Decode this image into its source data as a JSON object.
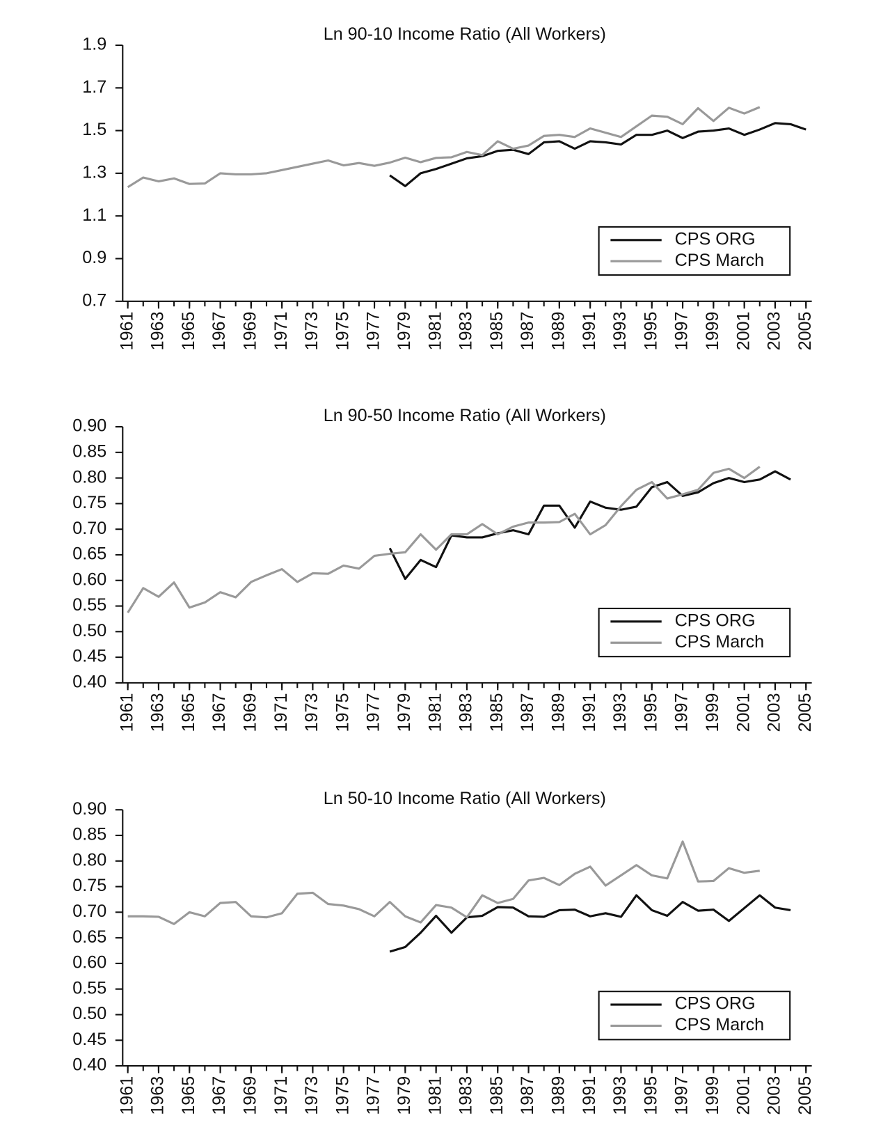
{
  "chart_data": [
    {
      "type": "line",
      "title": "Ln 90-10 Income Ratio (All Workers)",
      "x": [
        1961,
        1962,
        1963,
        1964,
        1965,
        1966,
        1967,
        1968,
        1969,
        1970,
        1971,
        1972,
        1973,
        1974,
        1975,
        1976,
        1977,
        1978,
        1979,
        1980,
        1981,
        1982,
        1983,
        1984,
        1985,
        1986,
        1987,
        1988,
        1989,
        1990,
        1991,
        1992,
        1993,
        1994,
        1995,
        1996,
        1997,
        1998,
        1999,
        2000,
        2001,
        2002,
        2003,
        2004,
        2005
      ],
      "series": [
        {
          "name": "CPS ORG",
          "color": "#111111",
          "values": [
            null,
            null,
            null,
            null,
            null,
            null,
            null,
            null,
            null,
            null,
            null,
            null,
            null,
            null,
            null,
            null,
            null,
            1.29,
            1.24,
            1.3,
            1.32,
            1.345,
            1.37,
            1.38,
            1.405,
            1.41,
            1.39,
            1.445,
            1.45,
            1.415,
            1.45,
            1.445,
            1.435,
            1.48,
            1.48,
            1.5,
            1.465,
            1.495,
            1.5,
            1.51,
            1.48,
            1.505,
            1.535,
            1.53,
            1.505
          ]
        },
        {
          "name": "CPS March",
          "color": "#999999",
          "values": [
            1.235,
            1.28,
            1.262,
            1.276,
            1.25,
            1.252,
            1.3,
            1.295,
            1.295,
            1.3,
            1.315,
            1.33,
            1.345,
            1.36,
            1.337,
            1.348,
            1.335,
            1.35,
            1.373,
            1.352,
            1.372,
            1.375,
            1.4,
            1.385,
            1.45,
            1.415,
            1.43,
            1.475,
            1.48,
            1.47,
            1.51,
            1.49,
            1.47,
            1.52,
            1.57,
            1.565,
            1.53,
            1.605,
            1.545,
            1.607,
            1.58,
            1.61,
            null,
            null,
            null
          ]
        }
      ],
      "ylim": [
        0.7,
        1.9
      ],
      "yticks": [
        0.7,
        0.9,
        1.1,
        1.3,
        1.5,
        1.7,
        1.9
      ],
      "xlim": [
        1961,
        2005
      ],
      "xticks": [
        1961,
        1963,
        1965,
        1967,
        1969,
        1971,
        1973,
        1975,
        1977,
        1979,
        1981,
        1983,
        1985,
        1987,
        1989,
        1991,
        1993,
        1995,
        1997,
        1999,
        2001,
        2003,
        2005
      ],
      "grid": false,
      "legend": "lower right"
    },
    {
      "type": "line",
      "title": "Ln 90-50 Income Ratio (All Workers)",
      "x": [
        1961,
        1962,
        1963,
        1964,
        1965,
        1966,
        1967,
        1968,
        1969,
        1970,
        1971,
        1972,
        1973,
        1974,
        1975,
        1976,
        1977,
        1978,
        1979,
        1980,
        1981,
        1982,
        1983,
        1984,
        1985,
        1986,
        1987,
        1988,
        1989,
        1990,
        1991,
        1992,
        1993,
        1994,
        1995,
        1996,
        1997,
        1998,
        1999,
        2000,
        2001,
        2002,
        2003,
        2004,
        2005
      ],
      "series": [
        {
          "name": "CPS ORG",
          "color": "#111111",
          "values": [
            null,
            null,
            null,
            null,
            null,
            null,
            null,
            null,
            null,
            null,
            null,
            null,
            null,
            null,
            null,
            null,
            null,
            0.663,
            0.603,
            0.64,
            0.626,
            0.688,
            0.684,
            0.684,
            0.692,
            0.698,
            0.69,
            0.746,
            0.746,
            0.703,
            0.754,
            0.742,
            0.738,
            0.744,
            0.782,
            0.792,
            0.765,
            0.772,
            0.79,
            0.8,
            0.792,
            0.797,
            0.813,
            0.797,
            null
          ]
        },
        {
          "name": "CPS March",
          "color": "#999999",
          "values": [
            0.537,
            0.585,
            0.568,
            0.596,
            0.547,
            0.557,
            0.577,
            0.567,
            0.597,
            0.61,
            0.622,
            0.597,
            0.614,
            0.613,
            0.629,
            0.623,
            0.648,
            0.652,
            0.655,
            0.69,
            0.66,
            0.69,
            0.69,
            0.71,
            0.69,
            0.705,
            0.713,
            0.713,
            0.714,
            0.73,
            0.69,
            0.708,
            0.745,
            0.777,
            0.792,
            0.76,
            0.768,
            0.777,
            0.81,
            0.818,
            0.8,
            0.822,
            null,
            null,
            null
          ]
        }
      ],
      "ylim": [
        0.4,
        0.9
      ],
      "yticks": [
        {
          "value": 0.4,
          "label": "0.40"
        },
        {
          "value": 0.45,
          "label": "0.45"
        },
        {
          "value": 0.5,
          "label": "0.50"
        },
        {
          "value": 0.55,
          "label": "0.55"
        },
        {
          "value": 0.6,
          "label": "0.60"
        },
        {
          "value": 0.65,
          "label": "0.65"
        },
        {
          "value": 0.7,
          "label": "0.70"
        },
        {
          "value": 0.75,
          "label": "0.75"
        },
        {
          "value": 0.8,
          "label": "0.80"
        },
        {
          "value": 0.85,
          "label": "0.85"
        },
        {
          "value": 0.9,
          "label": "0.90"
        }
      ],
      "xlim": [
        1961,
        2005
      ],
      "xticks": [
        1961,
        1963,
        1965,
        1967,
        1969,
        1971,
        1973,
        1975,
        1977,
        1979,
        1981,
        1983,
        1985,
        1987,
        1989,
        1991,
        1993,
        1995,
        1997,
        1999,
        2001,
        2003,
        2005
      ],
      "grid": false,
      "legend": "lower right"
    },
    {
      "type": "line",
      "title": "Ln 50-10 Income Ratio (All Workers)",
      "x": [
        1961,
        1962,
        1963,
        1964,
        1965,
        1966,
        1967,
        1968,
        1969,
        1970,
        1971,
        1972,
        1973,
        1974,
        1975,
        1976,
        1977,
        1978,
        1979,
        1980,
        1981,
        1982,
        1983,
        1984,
        1985,
        1986,
        1987,
        1988,
        1989,
        1990,
        1991,
        1992,
        1993,
        1994,
        1995,
        1996,
        1997,
        1998,
        1999,
        2000,
        2001,
        2002,
        2003,
        2004,
        2005
      ],
      "series": [
        {
          "name": "CPS ORG",
          "color": "#111111",
          "values": [
            null,
            null,
            null,
            null,
            null,
            null,
            null,
            null,
            null,
            null,
            null,
            null,
            null,
            null,
            null,
            null,
            null,
            0.623,
            0.632,
            0.66,
            0.693,
            0.66,
            0.69,
            0.693,
            0.71,
            0.709,
            0.692,
            0.691,
            0.704,
            0.705,
            0.692,
            0.698,
            0.691,
            0.733,
            0.704,
            0.693,
            0.72,
            0.703,
            0.705,
            0.683,
            0.708,
            0.733,
            0.709,
            0.704,
            null
          ]
        },
        {
          "name": "CPS March",
          "color": "#999999",
          "values": [
            0.692,
            0.692,
            0.691,
            0.677,
            0.7,
            0.692,
            0.718,
            0.72,
            0.692,
            0.69,
            0.698,
            0.736,
            0.738,
            0.716,
            0.713,
            0.706,
            0.692,
            0.72,
            0.692,
            0.68,
            0.714,
            0.709,
            0.69,
            0.733,
            0.718,
            0.726,
            0.762,
            0.767,
            0.753,
            0.775,
            0.789,
            0.752,
            0.772,
            0.792,
            0.772,
            0.766,
            0.838,
            0.76,
            0.761,
            0.786,
            0.777,
            0.781,
            null,
            null,
            null
          ]
        }
      ],
      "ylim": [
        0.4,
        0.9
      ],
      "yticks": [
        {
          "value": 0.4,
          "label": "0.40"
        },
        {
          "value": 0.45,
          "label": "0.45"
        },
        {
          "value": 0.5,
          "label": "0.50"
        },
        {
          "value": 0.55,
          "label": "0.55"
        },
        {
          "value": 0.6,
          "label": "0.60"
        },
        {
          "value": 0.65,
          "label": "0.65"
        },
        {
          "value": 0.7,
          "label": "0.70"
        },
        {
          "value": 0.75,
          "label": "0.75"
        },
        {
          "value": 0.8,
          "label": "0.80"
        },
        {
          "value": 0.85,
          "label": "0.85"
        },
        {
          "value": 0.9,
          "label": "0.90"
        }
      ],
      "xlim": [
        1961,
        2005
      ],
      "xticks": [
        1961,
        1963,
        1965,
        1967,
        1969,
        1971,
        1973,
        1975,
        1977,
        1979,
        1981,
        1983,
        1985,
        1987,
        1989,
        1991,
        1993,
        1995,
        1997,
        1999,
        2001,
        2003,
        2005
      ],
      "grid": false,
      "legend": "lower right"
    }
  ]
}
